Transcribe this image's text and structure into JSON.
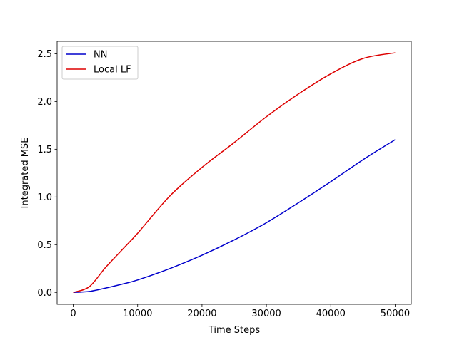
{
  "chart_data": {
    "type": "line",
    "title": "",
    "xlabel": "Time Steps",
    "ylabel": "Integrated MSE",
    "xlim": [
      -2500,
      52500
    ],
    "ylim": [
      -0.125,
      2.63
    ],
    "xticks": [
      0,
      10000,
      20000,
      30000,
      40000,
      50000
    ],
    "xtick_labels": [
      "0",
      "10000",
      "20000",
      "30000",
      "40000",
      "50000"
    ],
    "yticks": [
      0.0,
      0.5,
      1.0,
      1.5,
      2.0,
      2.5
    ],
    "ytick_labels": [
      "0.0",
      "0.5",
      "1.0",
      "1.5",
      "2.0",
      "2.5"
    ],
    "grid": false,
    "legend_position": "top-left",
    "x": [
      0,
      2500,
      5000,
      7500,
      10000,
      15000,
      20000,
      25000,
      30000,
      35000,
      40000,
      45000,
      50000
    ],
    "series": [
      {
        "name": "NN",
        "color": "#0000cc",
        "values": [
          0,
          0.01,
          0.045,
          0.085,
          0.13,
          0.25,
          0.39,
          0.55,
          0.73,
          0.94,
          1.16,
          1.39,
          1.6
        ]
      },
      {
        "name": "Local LF",
        "color": "#dd0000",
        "values": [
          0,
          0.06,
          0.26,
          0.44,
          0.62,
          1.01,
          1.31,
          1.57,
          1.84,
          2.08,
          2.29,
          2.45,
          2.51
        ]
      }
    ]
  }
}
